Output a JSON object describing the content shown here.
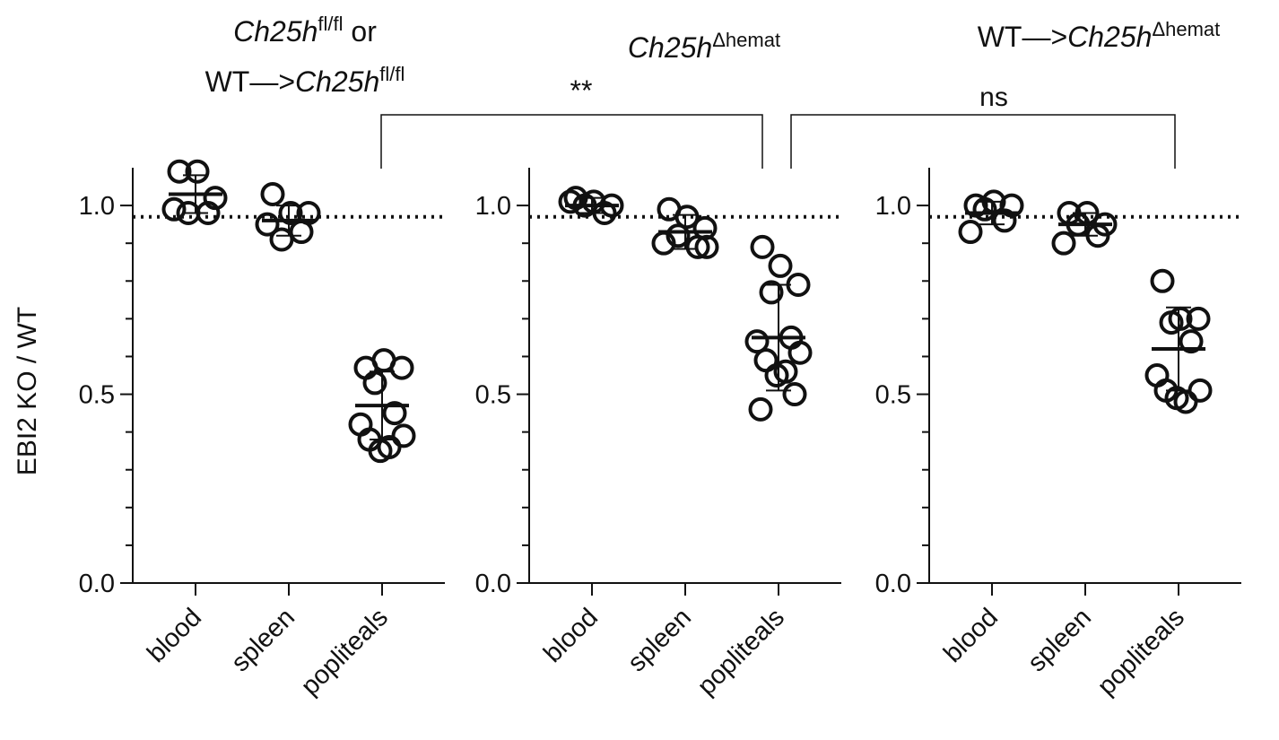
{
  "ylabel": "EBI2 KO / WT",
  "annotations": [
    "**",
    "ns"
  ],
  "chart_data": [
    {
      "type": "scatter",
      "title": [
        [
          {
            "text": "Ch25h",
            "italic": true
          },
          {
            "text": "fl/fl",
            "sup": true
          },
          {
            "text": " or"
          }
        ],
        [
          {
            "text": "WT—>"
          },
          {
            "text": "Ch25h",
            "italic": true
          },
          {
            "text": "fl/fl",
            "sup": true
          }
        ]
      ],
      "categories": [
        "blood",
        "spleen",
        "popliteals"
      ],
      "groups": [
        {
          "values": [
            1.09,
            1.09,
            1.02,
            0.98,
            0.98,
            0.99
          ],
          "mean": 1.03,
          "sd": 0.05
        },
        {
          "values": [
            1.03,
            0.98,
            0.98,
            0.91,
            0.93,
            0.95
          ],
          "mean": 0.96,
          "sd": 0.04
        },
        {
          "values": [
            0.57,
            0.59,
            0.57,
            0.53,
            0.45,
            0.42,
            0.39,
            0.38,
            0.36,
            0.35
          ],
          "mean": 0.47,
          "sd": 0.09
        }
      ],
      "reference_line": 0.97,
      "ylim": [
        0,
        1.1
      ],
      "yticks": [
        {
          "value": 0,
          "label": "0.0"
        },
        0.5,
        {
          "value": 1,
          "label": "1.0"
        }
      ],
      "yminorticks": [
        0.1,
        0.2,
        0.3,
        0.4,
        0.6,
        0.7,
        0.8,
        0.9
      ]
    },
    {
      "type": "scatter",
      "title": [
        [
          {
            "text": "Ch25h",
            "italic": true
          },
          {
            "text": "Δhemat",
            "sup": true
          }
        ]
      ],
      "categories": [
        "blood",
        "spleen",
        "popliteals"
      ],
      "groups": [
        {
          "values": [
            1.02,
            1.01,
            1.0,
            1.0,
            0.98,
            1.01
          ],
          "mean": 1.0,
          "sd": 0.02
        },
        {
          "values": [
            0.99,
            0.97,
            0.94,
            0.92,
            0.89,
            0.9,
            0.89
          ],
          "mean": 0.93,
          "sd": 0.045
        },
        {
          "values": [
            0.89,
            0.84,
            0.79,
            0.77,
            0.65,
            0.64,
            0.61,
            0.59,
            0.56,
            0.55,
            0.5,
            0.46
          ],
          "mean": 0.65,
          "sd": 0.14
        }
      ],
      "reference_line": 0.97,
      "ylim": [
        0,
        1.1
      ],
      "yticks": [
        {
          "value": 0,
          "label": "0.0"
        },
        0.5,
        {
          "value": 1,
          "label": "1.0"
        }
      ],
      "yminorticks": [
        0.1,
        0.2,
        0.3,
        0.4,
        0.6,
        0.7,
        0.8,
        0.9
      ]
    },
    {
      "type": "scatter",
      "title": [
        [
          {
            "text": "WT—>"
          },
          {
            "text": "Ch25h",
            "italic": true
          },
          {
            "text": "Δhemat",
            "sup": true
          }
        ]
      ],
      "categories": [
        "blood",
        "spleen",
        "popliteals"
      ],
      "groups": [
        {
          "values": [
            1.0,
            1.01,
            1.0,
            0.99,
            0.96,
            0.93
          ],
          "mean": 0.98,
          "sd": 0.03
        },
        {
          "values": [
            0.98,
            0.98,
            0.95,
            0.95,
            0.92,
            0.9
          ],
          "mean": 0.95,
          "sd": 0.03
        },
        {
          "values": [
            0.8,
            0.7,
            0.7,
            0.69,
            0.64,
            0.55,
            0.51,
            0.51,
            0.48,
            0.49
          ],
          "mean": 0.62,
          "sd": 0.11
        }
      ],
      "reference_line": 0.97,
      "ylim": [
        0,
        1.1
      ],
      "yticks": [
        {
          "value": 0,
          "label": "0.0"
        },
        0.5,
        {
          "value": 1,
          "label": "1.0"
        }
      ],
      "yminorticks": [
        0.1,
        0.2,
        0.3,
        0.4,
        0.6,
        0.7,
        0.8,
        0.9
      ]
    }
  ]
}
